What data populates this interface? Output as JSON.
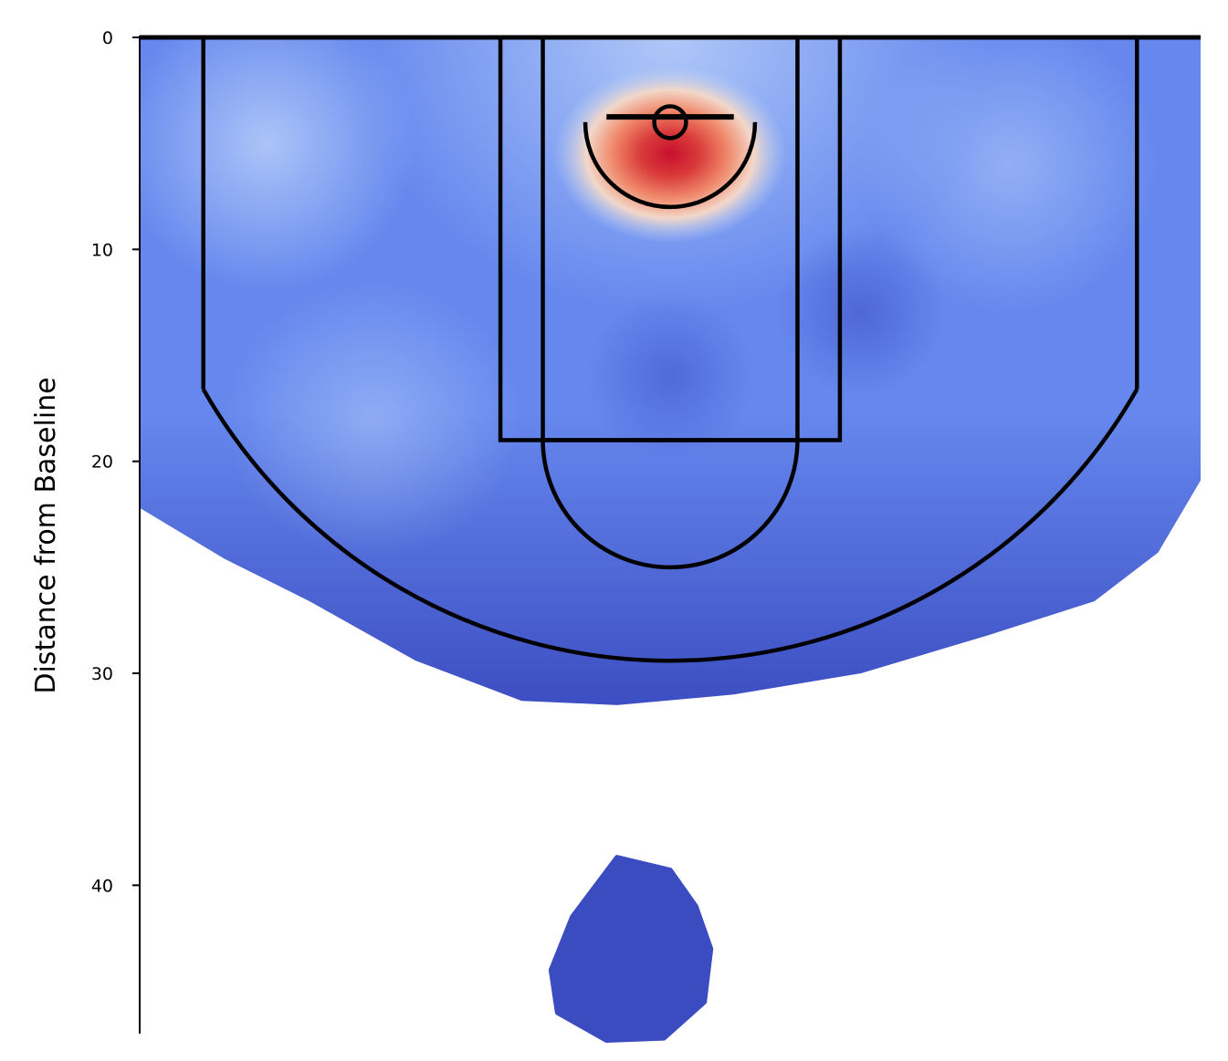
{
  "chart_data": {
    "type": "heatmap",
    "subtype": "basketball half-court shot density (KDE)",
    "title": "",
    "xlabel": "",
    "ylabel": "Distance from Baseline",
    "colormap": "coolwarm",
    "ylim": [
      47,
      0
    ],
    "xlim": [
      -25,
      25
    ],
    "y_axis_inverted": true,
    "x_axis_visible": false,
    "y_ticks": [
      0,
      10,
      20,
      30,
      40
    ],
    "grid": false,
    "colors": {
      "low": "#3b4cc0",
      "mid_low": "#6688ee",
      "light": "#b7cff9",
      "neutral": "#f2d7c9",
      "high": "#f08a6c",
      "peak": "#c8102e",
      "court_lines": "#000000"
    },
    "density_hotspots": [
      {
        "x": 0,
        "y": 5.5,
        "intensity": "peak",
        "note": "at rim"
      },
      {
        "x": -19,
        "y": 5,
        "intensity": "light",
        "note": "left corner/wing"
      },
      {
        "x": 16,
        "y": 6,
        "intensity": "mid_light",
        "note": "right wing"
      },
      {
        "x": -14,
        "y": 18,
        "intensity": "mid_light",
        "note": "left elbow extended"
      },
      {
        "x": -3,
        "y": 43,
        "intensity": "low",
        "note": "isolated deep cluster"
      }
    ],
    "court": {
      "hoop": {
        "x": 0,
        "y": 4,
        "radius": 0.75
      },
      "backboard": {
        "x1": -3,
        "x2": 3,
        "y": 3.75
      },
      "restricted_area_radius": 4,
      "outer_lane": {
        "x1": -8,
        "x2": 8,
        "y1": 0,
        "y2": 19
      },
      "inner_lane": {
        "x1": -6,
        "x2": 6,
        "y1": 0,
        "y2": 19
      },
      "free_throw_circle": {
        "x": 0,
        "y": 19,
        "radius": 6
      },
      "three_point": {
        "corner_x": 22,
        "corner_y": 16.6,
        "arc_radius": 25.3
      }
    }
  }
}
